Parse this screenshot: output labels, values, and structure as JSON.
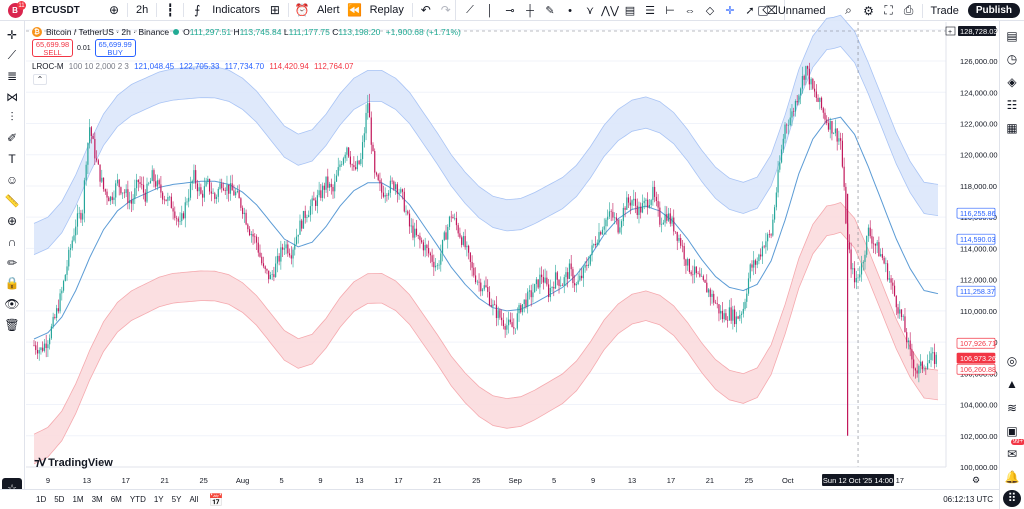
{
  "header": {
    "avatar_letter": "B",
    "notif_count": "11",
    "symbol": "BTCUSDT",
    "interval": "2h",
    "indicators_label": "Indicators",
    "alert_label": "Alert",
    "replay_label": "Replay",
    "layout_name": "Unnamed",
    "trade_label": "Trade",
    "publish_label": "Publish"
  },
  "legend": {
    "title": "Bitcoin / TetherUS · 2h · Binance",
    "o": "111,297.51",
    "h": "113,745.84",
    "l": "111,177.75",
    "c": "113,198.20",
    "change": "+1,900.68 (+1.71%)",
    "sell_price": "65,699.98",
    "sell_label": "SELL",
    "spread": "0.01",
    "buy_price": "65,699.99",
    "buy_label": "BUY",
    "indicator_name": "LROC-M",
    "indicator_params": "100 10 2,000 2 3",
    "ind_v1": "121,048.45",
    "ind_v2": "122,705.33",
    "ind_v3": "117,734.70",
    "ind_v4": "114,420.94",
    "ind_v5": "112,764.07"
  },
  "colors": {
    "up": "#22ab94",
    "down": "#f23645",
    "basis": "#5b9bd5",
    "upper_band": "#a9c4f5",
    "lower_band": "#f5a9ae",
    "candle_up": "#26a69a",
    "candle_down": "#c2185b"
  },
  "chart_data": {
    "type": "candlestick",
    "y_ticks": [
      "128,000.00",
      "126,000.00",
      "124,000.00",
      "122,000.00",
      "120,000.00",
      "118,000.00",
      "116,000.00",
      "114,000.00",
      "112,000.00",
      "110,000.00",
      "108,000.00",
      "106,000.00",
      "104,000.00",
      "102,000.00",
      "100,000.00"
    ],
    "ylim": [
      100000,
      128500
    ],
    "x_ticks": [
      "9",
      "13",
      "17",
      "21",
      "25",
      "Aug",
      "5",
      "9",
      "13",
      "17",
      "21",
      "25",
      "Sep",
      "5",
      "9",
      "13",
      "17",
      "21",
      "25",
      "Oct",
      "5",
      "17"
    ],
    "crosshair_price": "128,728.03",
    "crosshair_time": "Sun 12 Oct '25  14:00",
    "price_labels": [
      {
        "value": "116,255.86",
        "kind": "upper"
      },
      {
        "value": "114,590.03",
        "kind": "upper"
      },
      {
        "value": "111,258.37",
        "kind": "basis"
      },
      {
        "value": "107,926.71",
        "kind": "lower"
      },
      {
        "value": "106,973.26",
        "kind": "last"
      },
      {
        "value": "106,260.88",
        "kind": "lower"
      }
    ],
    "basis_path": [
      [
        0,
        108200
      ],
      [
        2,
        108600
      ],
      [
        4,
        109600
      ],
      [
        6,
        111300
      ],
      [
        8,
        113400
      ],
      [
        10,
        115200
      ],
      [
        12,
        116400
      ],
      [
        14,
        117100
      ],
      [
        16,
        117500
      ],
      [
        18,
        117900
      ],
      [
        20,
        118100
      ],
      [
        22,
        118200
      ],
      [
        24,
        118300
      ],
      [
        26,
        118300
      ],
      [
        28,
        118100
      ],
      [
        30,
        117600
      ],
      [
        32,
        116800
      ],
      [
        34,
        115700
      ],
      [
        36,
        114600
      ],
      [
        38,
        114100
      ],
      [
        40,
        114400
      ],
      [
        42,
        115400
      ],
      [
        44,
        116700
      ],
      [
        46,
        117700
      ],
      [
        48,
        118200
      ],
      [
        50,
        118200
      ],
      [
        52,
        117700
      ],
      [
        54,
        116800
      ],
      [
        56,
        115500
      ],
      [
        58,
        114200
      ],
      [
        60,
        112800
      ],
      [
        62,
        111700
      ],
      [
        64,
        110800
      ],
      [
        66,
        110200
      ],
      [
        68,
        110000
      ],
      [
        70,
        110100
      ],
      [
        72,
        110500
      ],
      [
        74,
        111000
      ],
      [
        76,
        111500
      ],
      [
        78,
        112300
      ],
      [
        80,
        113500
      ],
      [
        82,
        114900
      ],
      [
        84,
        115900
      ],
      [
        86,
        116500
      ],
      [
        88,
        116700
      ],
      [
        90,
        116400
      ],
      [
        92,
        115700
      ],
      [
        94,
        114600
      ],
      [
        96,
        113300
      ],
      [
        98,
        112200
      ],
      [
        100,
        111500
      ],
      [
        102,
        111300
      ],
      [
        104,
        111700
      ],
      [
        106,
        113200
      ],
      [
        108,
        115800
      ],
      [
        110,
        118800
      ],
      [
        112,
        121000
      ],
      [
        114,
        122200
      ],
      [
        116,
        122400
      ],
      [
        118,
        121300
      ],
      [
        120,
        119200
      ],
      [
        122,
        116900
      ],
      [
        124,
        114600
      ],
      [
        126,
        112700
      ],
      [
        128,
        111300
      ],
      [
        130,
        111100
      ]
    ],
    "band_width_upper": [
      [
        0,
        5400
      ],
      [
        20,
        5400
      ],
      [
        40,
        5200
      ],
      [
        60,
        5200
      ],
      [
        80,
        5000
      ],
      [
        100,
        5000
      ],
      [
        115,
        4500
      ],
      [
        130,
        5000
      ]
    ],
    "band_width_lower": [
      [
        0,
        8000
      ],
      [
        20,
        7600
      ],
      [
        40,
        7800
      ],
      [
        60,
        7600
      ],
      [
        80,
        7400
      ],
      [
        100,
        7200
      ],
      [
        115,
        7400
      ],
      [
        130,
        6800
      ]
    ],
    "price_path": [
      [
        0,
        107800
      ],
      [
        1,
        107500
      ],
      [
        2,
        108200
      ],
      [
        3,
        109500
      ],
      [
        4,
        111200
      ],
      [
        5,
        113500
      ],
      [
        6,
        115600
      ],
      [
        7,
        116500
      ],
      [
        7.5,
        119800
      ],
      [
        8,
        121800
      ],
      [
        9,
        119500
      ],
      [
        10,
        117800
      ],
      [
        11,
        117200
      ],
      [
        12,
        118200
      ],
      [
        13,
        117600
      ],
      [
        14,
        116900
      ],
      [
        15,
        118300
      ],
      [
        16,
        117400
      ],
      [
        17,
        118600
      ],
      [
        18,
        117800
      ],
      [
        19,
        117200
      ],
      [
        20,
        116700
      ],
      [
        21,
        115400
      ],
      [
        22,
        117200
      ],
      [
        23,
        118600
      ],
      [
        24,
        117400
      ],
      [
        25,
        118100
      ],
      [
        26,
        117200
      ],
      [
        27,
        118300
      ],
      [
        28,
        117800
      ],
      [
        29,
        117500
      ],
      [
        30,
        116600
      ],
      [
        31,
        115200
      ],
      [
        32,
        114400
      ],
      [
        33,
        112600
      ],
      [
        34,
        112100
      ],
      [
        35,
        113100
      ],
      [
        36,
        114300
      ],
      [
        37,
        113800
      ],
      [
        38,
        115200
      ],
      [
        39,
        116200
      ],
      [
        40,
        116800
      ],
      [
        41,
        117300
      ],
      [
        42,
        118200
      ],
      [
        43,
        117600
      ],
      [
        44,
        119400
      ],
      [
        45,
        120600
      ],
      [
        46,
        118900
      ],
      [
        47,
        119600
      ],
      [
        48,
        123400
      ],
      [
        49,
        118600
      ],
      [
        50,
        117600
      ],
      [
        51,
        117900
      ],
      [
        52,
        118200
      ],
      [
        53,
        117200
      ],
      [
        54,
        115400
      ],
      [
        55,
        114700
      ],
      [
        56,
        114200
      ],
      [
        57,
        113500
      ],
      [
        58,
        112800
      ],
      [
        59,
        114600
      ],
      [
        60,
        116200
      ],
      [
        61,
        115200
      ],
      [
        62,
        114100
      ],
      [
        63,
        112600
      ],
      [
        64,
        111800
      ],
      [
        65,
        111400
      ],
      [
        66,
        110200
      ],
      [
        67,
        109600
      ],
      [
        68,
        109100
      ],
      [
        69,
        108900
      ],
      [
        70,
        110300
      ],
      [
        71,
        110800
      ],
      [
        72,
        111400
      ],
      [
        73,
        112300
      ],
      [
        74,
        111200
      ],
      [
        75,
        112100
      ],
      [
        76,
        111800
      ],
      [
        77,
        112600
      ],
      [
        78,
        111600
      ],
      [
        79,
        112400
      ],
      [
        80,
        113600
      ],
      [
        81,
        114800
      ],
      [
        82,
        115700
      ],
      [
        83,
        116200
      ],
      [
        84,
        115400
      ],
      [
        85,
        116800
      ],
      [
        86,
        117100
      ],
      [
        87,
        116400
      ],
      [
        88,
        116900
      ],
      [
        89,
        117500
      ],
      [
        90,
        115800
      ],
      [
        91,
        116200
      ],
      [
        92,
        115400
      ],
      [
        93,
        114400
      ],
      [
        94,
        112900
      ],
      [
        95,
        112400
      ],
      [
        96,
        111800
      ],
      [
        97,
        111300
      ],
      [
        98,
        110500
      ],
      [
        99,
        109600
      ],
      [
        100,
        109900
      ],
      [
        101,
        109500
      ],
      [
        102,
        110200
      ],
      [
        103,
        112700
      ],
      [
        104,
        113200
      ],
      [
        105,
        114400
      ],
      [
        106,
        114900
      ],
      [
        107,
        118600
      ],
      [
        108,
        121900
      ],
      [
        109,
        122600
      ],
      [
        110,
        124100
      ],
      [
        111,
        125600
      ],
      [
        112,
        124100
      ],
      [
        113,
        123200
      ],
      [
        114,
        122200
      ],
      [
        115,
        121600
      ],
      [
        116,
        120900
      ],
      [
        117,
        114200
      ],
      [
        118,
        111800
      ],
      [
        119,
        112900
      ],
      [
        120,
        115100
      ],
      [
        121,
        114200
      ],
      [
        122,
        113400
      ],
      [
        123,
        112100
      ],
      [
        124,
        110600
      ],
      [
        125,
        109200
      ],
      [
        126,
        107200
      ],
      [
        127,
        106100
      ],
      [
        128,
        106600
      ],
      [
        129,
        106900
      ],
      [
        130,
        106970
      ]
    ]
  },
  "bottom": {
    "ranges": [
      "1D",
      "5D",
      "1M",
      "3M",
      "6M",
      "YTD",
      "1Y",
      "5Y",
      "All"
    ],
    "clock": "06:12:13 UTC",
    "logo_text": "TradingView"
  }
}
